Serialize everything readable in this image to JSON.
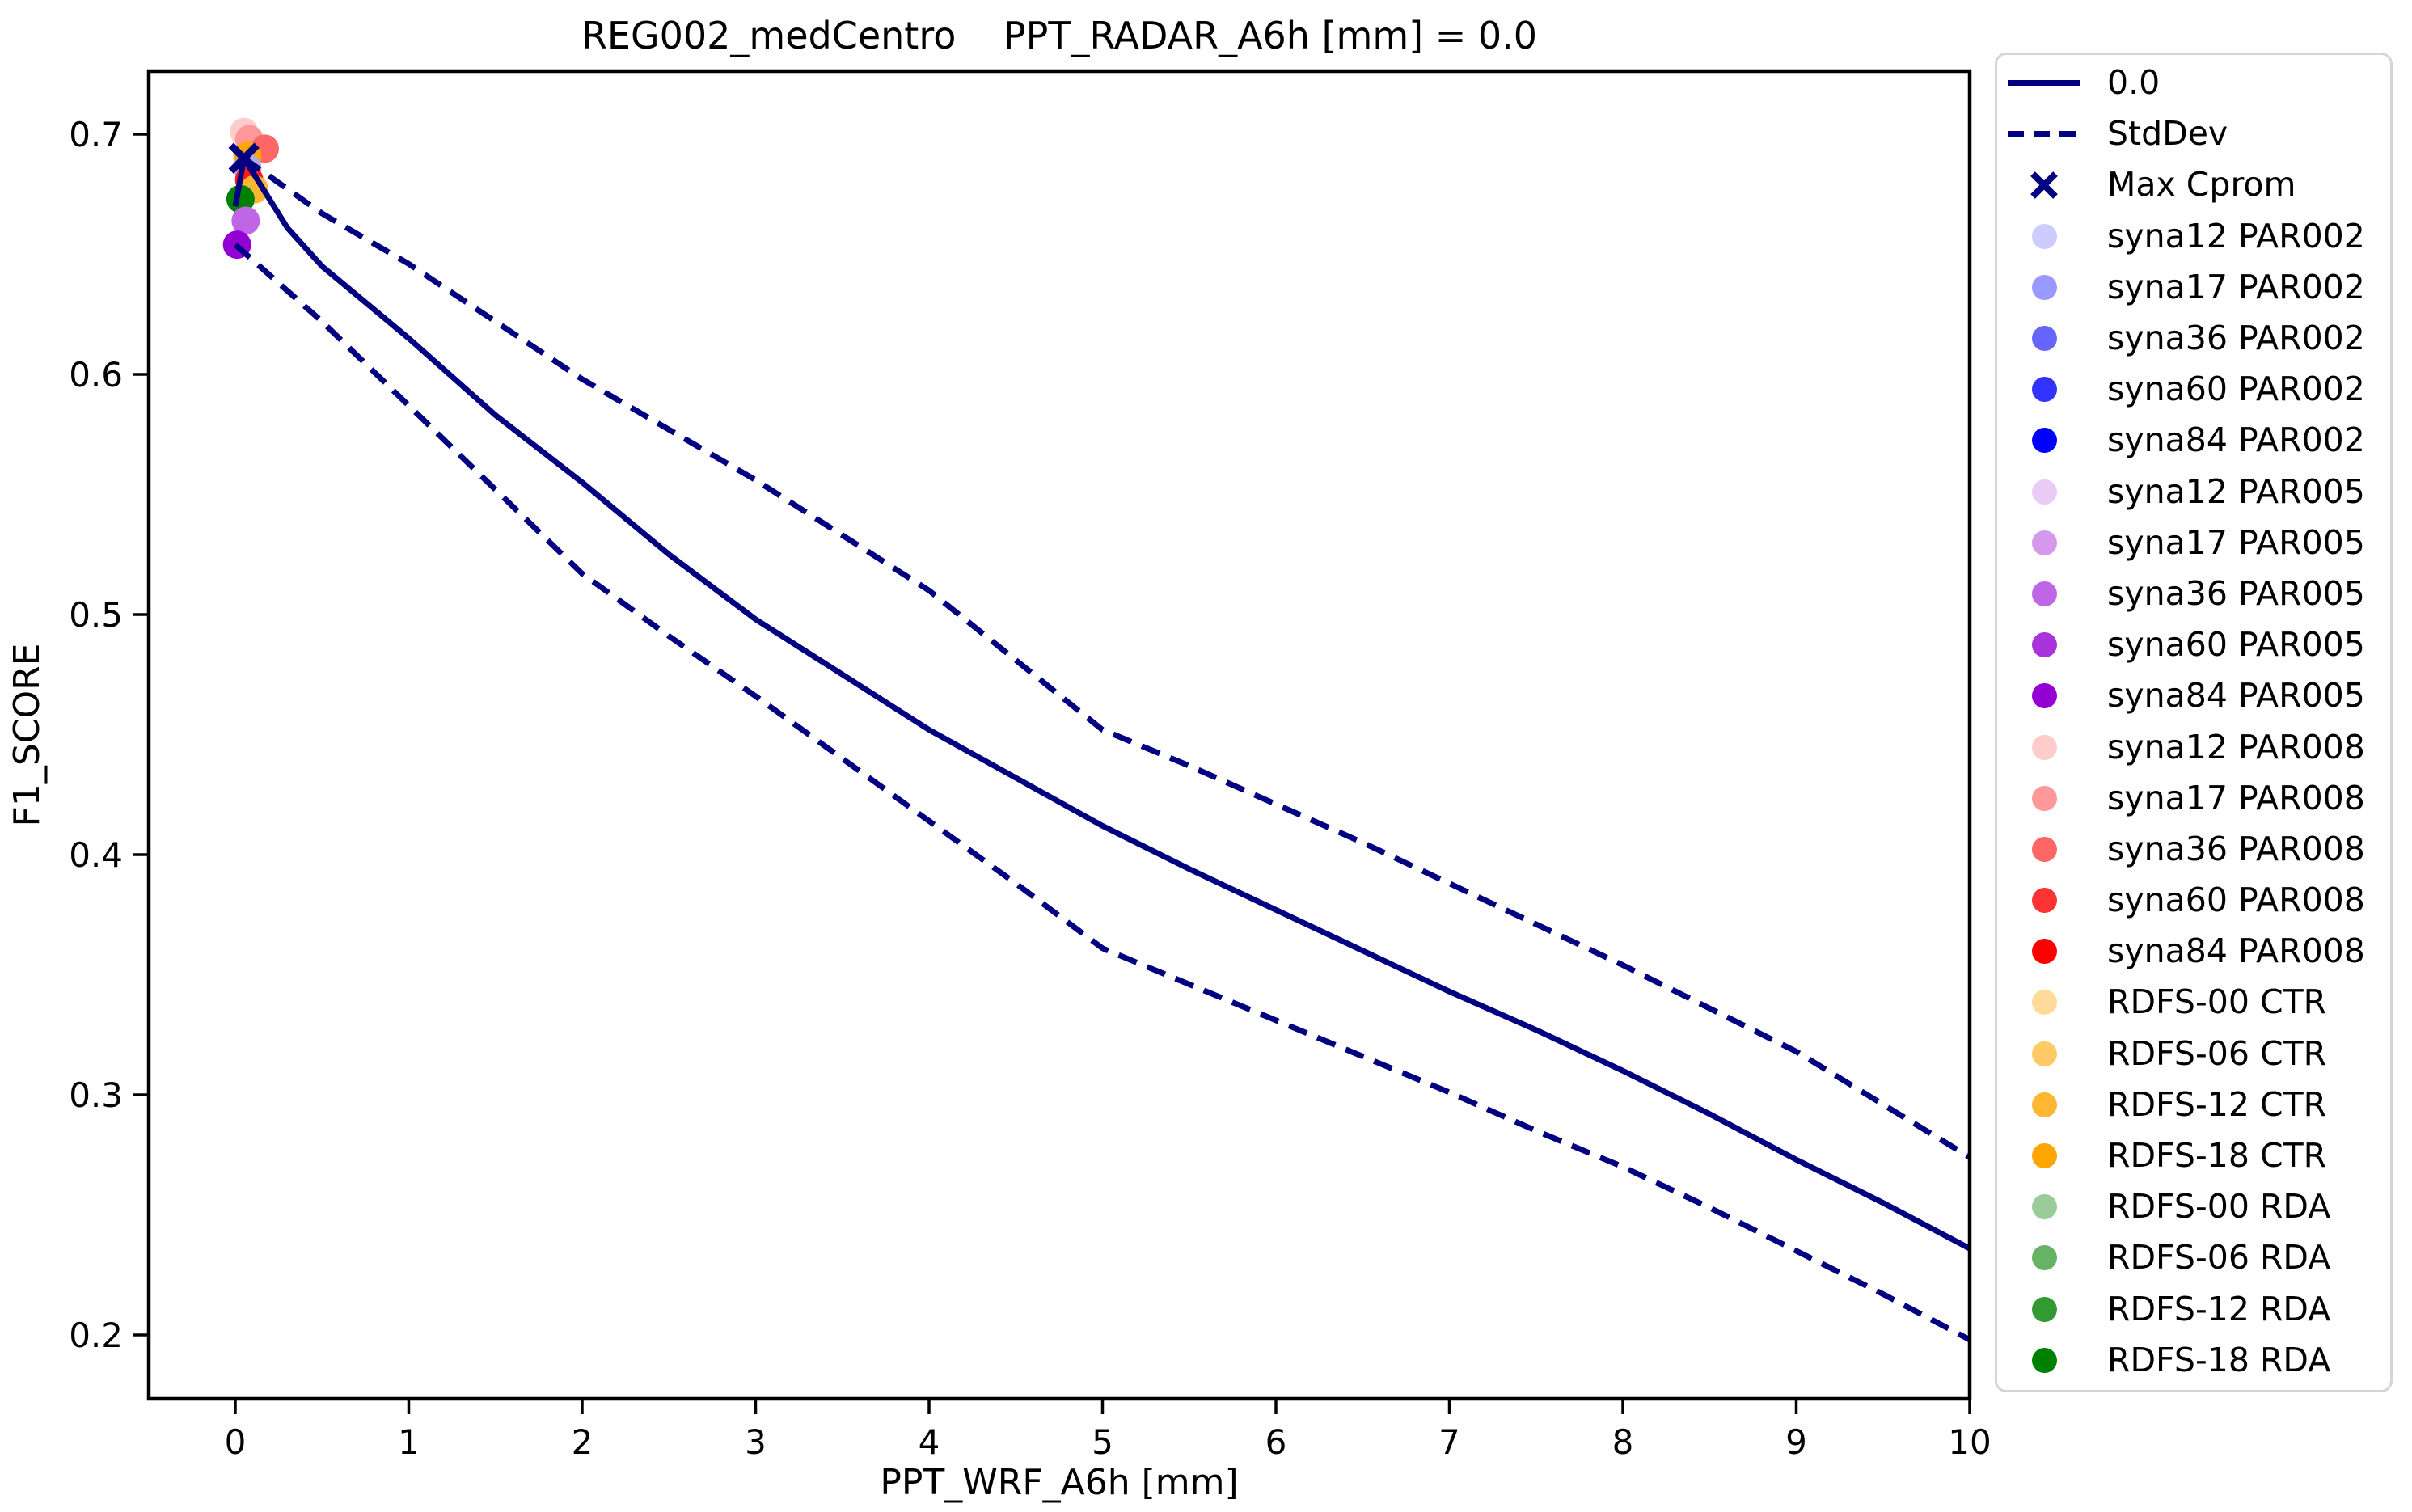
{
  "figure": {
    "colors": {
      "accent_navy": "#000080",
      "spine_black": "#000000",
      "legend_border": "#d5d5d5",
      "background": "#ffffff"
    }
  },
  "chart_data": {
    "type": "line",
    "title": "REG002_medCentro    PPT_RADAR_A6h [mm] = 0.0",
    "xlabel": "PPT_WRF_A6h [mm]",
    "ylabel": "F1_SCORE",
    "xlim": [
      -0.5,
      10.0
    ],
    "ylim": [
      0.173,
      0.726
    ],
    "grid": false,
    "legend_position": "outside-right",
    "xticks": [
      0,
      1,
      2,
      3,
      4,
      5,
      6,
      7,
      8,
      9,
      10
    ],
    "xtick_labels": [
      "0",
      "1",
      "2",
      "3",
      "4",
      "5",
      "6",
      "7",
      "8",
      "9",
      "10"
    ],
    "yticks": [
      0.2,
      0.3,
      0.4,
      0.5,
      0.6,
      0.7
    ],
    "ytick_labels": [
      "0.2",
      "0.3",
      "0.4",
      "0.5",
      "0.6",
      "0.7"
    ],
    "series": [
      {
        "name": "0.0",
        "style": "solid",
        "color": "#000080",
        "x": [
          0,
          0.05,
          0.3,
          0.5,
          1,
          1.5,
          2,
          2.5,
          3,
          3.5,
          4,
          4.5,
          5,
          5.5,
          6,
          6.5,
          7,
          7.5,
          8,
          8.5,
          9,
          9.5,
          10
        ],
        "y": [
          0.67,
          0.69,
          0.661,
          0.645,
          0.615,
          0.583,
          0.555,
          0.525,
          0.498,
          0.475,
          0.452,
          0.432,
          0.412,
          0.394,
          0.377,
          0.36,
          0.343,
          0.327,
          0.31,
          0.292,
          0.273,
          0.255,
          0.236
        ]
      },
      {
        "name": "StdDev (upper)",
        "style": "dashed",
        "color": "#000080",
        "x": [
          0.05,
          0.5,
          1,
          1.5,
          2,
          2.5,
          3,
          3.5,
          4,
          4.5,
          5,
          5.5,
          6,
          6.5,
          7,
          7.5,
          8,
          8.5,
          9,
          9.5,
          10
        ],
        "y": [
          0.69,
          0.667,
          0.646,
          0.622,
          0.598,
          0.577,
          0.556,
          0.533,
          0.51,
          0.481,
          0.452,
          0.437,
          0.421,
          0.405,
          0.388,
          0.371,
          0.354,
          0.336,
          0.318,
          0.296,
          0.274
        ]
      },
      {
        "name": "StdDev (lower)",
        "style": "dashed",
        "color": "#000080",
        "x": [
          0,
          0.5,
          1,
          1.5,
          2,
          2.5,
          3,
          3.5,
          4,
          4.5,
          5,
          5.5,
          6,
          6.5,
          7,
          7.5,
          8,
          8.5,
          9,
          9.5,
          10
        ],
        "y": [
          0.654,
          0.622,
          0.587,
          0.552,
          0.517,
          0.491,
          0.466,
          0.44,
          0.414,
          0.388,
          0.361,
          0.346,
          0.331,
          0.316,
          0.301,
          0.285,
          0.27,
          0.253,
          0.235,
          0.217,
          0.198
        ]
      }
    ],
    "max_cprom_marker": {
      "label": "Max Cprom",
      "x": 0.05,
      "y": 0.69,
      "color": "#000080"
    },
    "scatter_points": [
      {
        "series": "syna12 PAR008",
        "x": 0.05,
        "y": 0.701,
        "color": "#ffcccc"
      },
      {
        "series": "syna17 PAR008",
        "x": 0.08,
        "y": 0.698,
        "color": "#ff9999"
      },
      {
        "series": "syna36 PAR008",
        "x": 0.17,
        "y": 0.694,
        "color": "#ff6666"
      },
      {
        "series": "RDFS-18 CTR",
        "x": 0.07,
        "y": 0.691,
        "color": "#ffa500"
      },
      {
        "series": "syna17 PAR002",
        "x": 0.07,
        "y": 0.686,
        "color": "#aaaadf"
      },
      {
        "series": "syna84 PAR008",
        "x": 0.08,
        "y": 0.681,
        "color": "#ff1a1a"
      },
      {
        "series": "RDFS-12 CTR",
        "x": 0.11,
        "y": 0.677,
        "color": "#ffb733"
      },
      {
        "series": "RDFS-18 RDA",
        "x": 0.03,
        "y": 0.673,
        "color": "#008000"
      },
      {
        "series": "syna36 PAR005",
        "x": 0.06,
        "y": 0.664,
        "color": "#be66e5"
      },
      {
        "series": "syna84 PAR005",
        "x": 0.01,
        "y": 0.654,
        "color": "#9400d3"
      }
    ],
    "legend_entries": [
      {
        "label": "0.0",
        "marker": "line-solid",
        "color": "#000080"
      },
      {
        "label": "StdDev",
        "marker": "line-dashed",
        "color": "#000080"
      },
      {
        "label": "Max Cprom",
        "marker": "x",
        "color": "#000080"
      },
      {
        "label": "syna12 PAR002",
        "marker": "dot",
        "color": "#ccccff"
      },
      {
        "label": "syna17 PAR002",
        "marker": "dot",
        "color": "#9999ff"
      },
      {
        "label": "syna36 PAR002",
        "marker": "dot",
        "color": "#6666ff"
      },
      {
        "label": "syna60 PAR002",
        "marker": "dot",
        "color": "#3333ff"
      },
      {
        "label": "syna84 PAR002",
        "marker": "dot",
        "color": "#0000ff"
      },
      {
        "label": "syna12 PAR005",
        "marker": "dot",
        "color": "#e9ccf6"
      },
      {
        "label": "syna17 PAR005",
        "marker": "dot",
        "color": "#d499ed"
      },
      {
        "label": "syna36 PAR005",
        "marker": "dot",
        "color": "#be66e5"
      },
      {
        "label": "syna60 PAR005",
        "marker": "dot",
        "color": "#a933dc"
      },
      {
        "label": "syna84 PAR005",
        "marker": "dot",
        "color": "#9400d3"
      },
      {
        "label": "syna12 PAR008",
        "marker": "dot",
        "color": "#ffcccc"
      },
      {
        "label": "syna17 PAR008",
        "marker": "dot",
        "color": "#ff9999"
      },
      {
        "label": "syna36 PAR008",
        "marker": "dot",
        "color": "#ff6666"
      },
      {
        "label": "syna60 PAR008",
        "marker": "dot",
        "color": "#ff3333"
      },
      {
        "label": "syna84 PAR008",
        "marker": "dot",
        "color": "#ff0000"
      },
      {
        "label": "RDFS-00 CTR",
        "marker": "dot",
        "color": "#ffdb99"
      },
      {
        "label": "RDFS-06 CTR",
        "marker": "dot",
        "color": "#ffc966"
      },
      {
        "label": "RDFS-12 CTR",
        "marker": "dot",
        "color": "#ffb733"
      },
      {
        "label": "RDFS-18 CTR",
        "marker": "dot",
        "color": "#ffa500"
      },
      {
        "label": "RDFS-00 RDA",
        "marker": "dot",
        "color": "#99cc99"
      },
      {
        "label": "RDFS-06 RDA",
        "marker": "dot",
        "color": "#66b366"
      },
      {
        "label": "RDFS-12 RDA",
        "marker": "dot",
        "color": "#339933"
      },
      {
        "label": "RDFS-18 RDA",
        "marker": "dot",
        "color": "#008000"
      }
    ]
  }
}
